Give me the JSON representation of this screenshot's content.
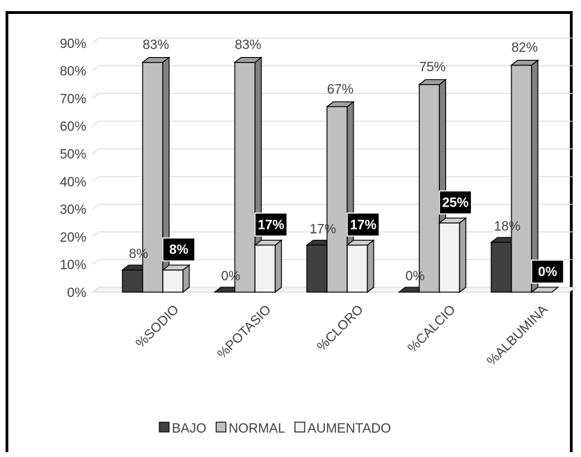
{
  "chart_data": {
    "type": "bar",
    "categories": [
      "%SODIO",
      "%POTASIO",
      "%CLORO",
      "%CALCIO",
      "%ALBUMINA"
    ],
    "series": [
      {
        "name": "BAJO",
        "values": [
          8,
          0,
          17,
          0,
          18
        ],
        "labels": [
          "8%",
          "0%",
          "17%",
          "0%",
          "18%"
        ],
        "color": "#404040"
      },
      {
        "name": "NORMAL",
        "values": [
          83,
          83,
          67,
          75,
          82
        ],
        "labels": [
          "83%",
          "83%",
          "67%",
          "75%",
          "82%"
        ],
        "color": "#bfbfbf"
      },
      {
        "name": "AUMENTADO",
        "values": [
          8,
          17,
          17,
          25,
          0
        ],
        "labels": [
          "8%",
          "17%",
          "17%",
          "25%",
          "0%"
        ],
        "color": "#f2f2f2"
      }
    ],
    "yticks": [
      "0%",
      "10%",
      "20%",
      "30%",
      "40%",
      "50%",
      "60%",
      "70%",
      "80%",
      "90%"
    ],
    "ylim": [
      0,
      90
    ],
    "grid": true,
    "legend": "bottom",
    "style": "3d-clustered-column"
  }
}
